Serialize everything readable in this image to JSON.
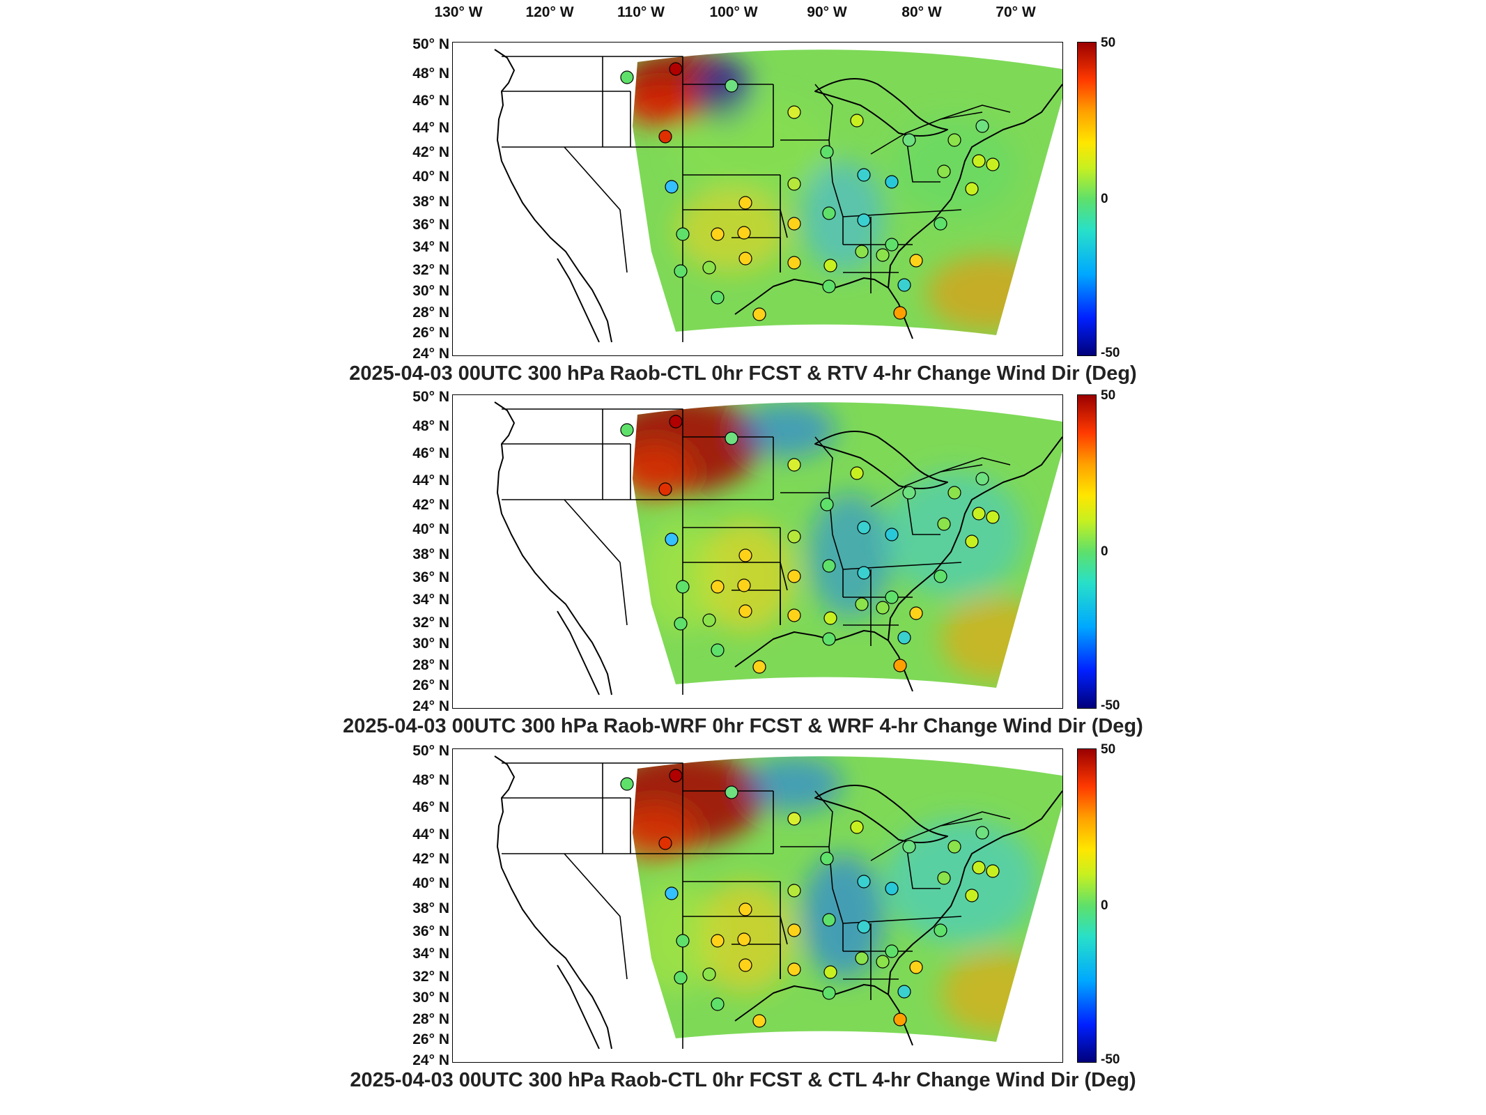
{
  "longitude_labels": [
    "130° W",
    "120° W",
    "110° W",
    "100° W",
    "90° W",
    "80° W",
    "70° W"
  ],
  "latitude_labels": [
    "50° N",
    "48° N",
    "46° N",
    "44° N",
    "42° N",
    "40° N",
    "38° N",
    "36° N",
    "34° N",
    "32° N",
    "30° N",
    "28° N",
    "26° N",
    "24° N"
  ],
  "colorbar": {
    "max_label": "50",
    "mid_label": "0",
    "min_label": "-50",
    "min": -50,
    "max": 50,
    "colormap": "jet"
  },
  "panels": [
    {
      "title": "2025-04-03 00UTC 300 hPa Raob-CTL 0hr FCST & RTV 4-hr Change Wind Dir (Deg)"
    },
    {
      "title": "2025-04-03 00UTC 300 hPa Raob-WRF 0hr FCST & WRF 4-hr Change Wind Dir (Deg)"
    },
    {
      "title": "2025-04-03 00UTC 300 hPa Raob-CTL 0hr FCST & CTL 4-hr Change Wind Dir (Deg)"
    }
  ],
  "colors": {
    "background": "#ffffff",
    "border": "#000000",
    "text": "#222222"
  }
}
